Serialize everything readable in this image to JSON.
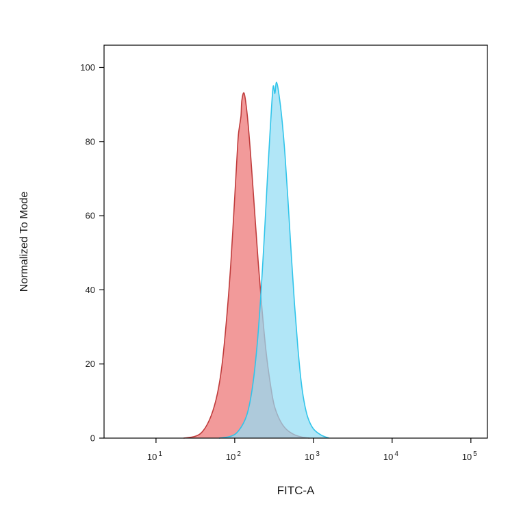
{
  "chart_data": {
    "type": "area",
    "title": "",
    "xlabel": "FITC-A",
    "ylabel": "Normalized To Mode",
    "x_scale": "log",
    "x_range_log": [
      0.34,
      5.21
    ],
    "y_range": [
      0,
      106
    ],
    "grid": false,
    "legend": "none",
    "x_ticks": [
      {
        "label_base": "10",
        "label_exp": "1",
        "log": 1
      },
      {
        "label_base": "10",
        "label_exp": "2",
        "log": 2
      },
      {
        "label_base": "10",
        "label_exp": "3",
        "log": 3
      },
      {
        "label_base": "10",
        "label_exp": "4",
        "log": 4
      },
      {
        "label_base": "10",
        "label_exp": "5",
        "log": 5
      }
    ],
    "y_ticks": [
      {
        "label": "0",
        "value": 0
      },
      {
        "label": "20",
        "value": 20
      },
      {
        "label": "40",
        "value": 40
      },
      {
        "label": "60",
        "value": 60
      },
      {
        "label": "80",
        "value": 80
      },
      {
        "label": "100",
        "value": 100
      }
    ],
    "series": [
      {
        "name": "red-population",
        "fill": "#ee7d7d",
        "fill_opacity": 0.78,
        "stroke": "#bf3b3b",
        "stroke_width": 1.6,
        "points_logx_y": [
          [
            1.35,
            0
          ],
          [
            1.5,
            0.5
          ],
          [
            1.6,
            2
          ],
          [
            1.7,
            6
          ],
          [
            1.78,
            12
          ],
          [
            1.84,
            20
          ],
          [
            1.9,
            33
          ],
          [
            1.95,
            47
          ],
          [
            2.0,
            65
          ],
          [
            2.04,
            80
          ],
          [
            2.06,
            84
          ],
          [
            2.08,
            87
          ],
          [
            2.09,
            91
          ],
          [
            2.12,
            93
          ],
          [
            2.16,
            87
          ],
          [
            2.2,
            77
          ],
          [
            2.25,
            62
          ],
          [
            2.3,
            47
          ],
          [
            2.35,
            34
          ],
          [
            2.4,
            23
          ],
          [
            2.45,
            15
          ],
          [
            2.5,
            9
          ],
          [
            2.57,
            5
          ],
          [
            2.65,
            2.5
          ],
          [
            2.75,
            1
          ],
          [
            2.85,
            0.3
          ],
          [
            2.95,
            0
          ]
        ]
      },
      {
        "name": "cyan-population",
        "fill": "#93ddf4",
        "fill_opacity": 0.72,
        "stroke": "#2fc4ea",
        "stroke_width": 1.6,
        "points_logx_y": [
          [
            1.8,
            0
          ],
          [
            1.95,
            0.5
          ],
          [
            2.05,
            2
          ],
          [
            2.15,
            6
          ],
          [
            2.22,
            13
          ],
          [
            2.28,
            24
          ],
          [
            2.33,
            38
          ],
          [
            2.38,
            56
          ],
          [
            2.42,
            72
          ],
          [
            2.45,
            83
          ],
          [
            2.47,
            90
          ],
          [
            2.49,
            95
          ],
          [
            2.51,
            93
          ],
          [
            2.53,
            96
          ],
          [
            2.56,
            93
          ],
          [
            2.6,
            86
          ],
          [
            2.64,
            76
          ],
          [
            2.68,
            63
          ],
          [
            2.72,
            49
          ],
          [
            2.76,
            36
          ],
          [
            2.8,
            25
          ],
          [
            2.84,
            16
          ],
          [
            2.88,
            10
          ],
          [
            2.93,
            5.5
          ],
          [
            3.0,
            2.5
          ],
          [
            3.1,
            0.8
          ],
          [
            3.2,
            0
          ]
        ]
      }
    ],
    "axis_color": "#000000",
    "tick_label_color": "#1a1a1a"
  }
}
